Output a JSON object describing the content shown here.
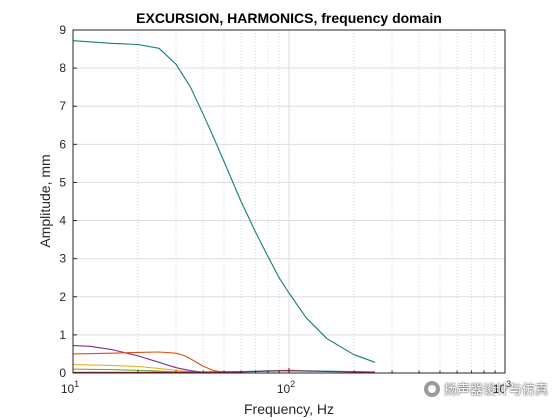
{
  "chart_data": {
    "type": "line",
    "title": "EXCURSION, HARMONICS, frequency domain",
    "xlabel": "Frequency, Hz",
    "ylabel": "Amplitude, mm",
    "xscale": "log",
    "xlim": [
      10,
      1000
    ],
    "ylim": [
      0,
      9
    ],
    "xticks": [
      10,
      100,
      1000
    ],
    "xtick_labels": [
      {
        "base": "10",
        "exp": "1"
      },
      {
        "base": "10",
        "exp": "2"
      },
      {
        "base": "10",
        "exp": "3"
      }
    ],
    "yticks": [
      0,
      1,
      2,
      3,
      4,
      5,
      6,
      7,
      8,
      9
    ],
    "ytick_labels": [
      "0",
      "1",
      "2",
      "3",
      "4",
      "5",
      "6",
      "7",
      "8",
      "9"
    ],
    "grid": true,
    "legend": "none",
    "series": [
      {
        "color": "#1a7a7a",
        "x": [
          10,
          15,
          20,
          25,
          30,
          35,
          40,
          45,
          50,
          55,
          60,
          70,
          80,
          90,
          100,
          120,
          150,
          200,
          250
        ],
        "y": [
          8.72,
          8.65,
          8.62,
          8.52,
          8.1,
          7.5,
          6.8,
          6.15,
          5.55,
          5.0,
          4.5,
          3.7,
          3.05,
          2.5,
          2.1,
          1.45,
          0.9,
          0.48,
          0.28
        ]
      },
      {
        "color": "#7e2f8e",
        "x": [
          10,
          12,
          15,
          20,
          25,
          30,
          35,
          40,
          45,
          50
        ],
        "y": [
          0.72,
          0.7,
          0.62,
          0.45,
          0.28,
          0.14,
          0.06,
          0.02,
          0.01,
          0.0
        ]
      },
      {
        "color": "#d95319",
        "x": [
          10,
          15,
          20,
          25,
          30,
          33,
          36,
          40,
          45,
          50,
          55
        ],
        "y": [
          0.5,
          0.52,
          0.54,
          0.55,
          0.52,
          0.45,
          0.33,
          0.18,
          0.06,
          0.02,
          0.0
        ]
      },
      {
        "color": "#edb120",
        "x": [
          10,
          15,
          20,
          25,
          30,
          35,
          40
        ],
        "y": [
          0.22,
          0.2,
          0.17,
          0.12,
          0.07,
          0.03,
          0.01
        ]
      },
      {
        "color": "#77ac30",
        "x": [
          10,
          15,
          20,
          25,
          30,
          35
        ],
        "y": [
          0.1,
          0.09,
          0.07,
          0.05,
          0.03,
          0.01
        ]
      },
      {
        "color": "#4dbeee",
        "x": [
          10,
          20,
          40,
          60,
          80,
          100,
          150,
          200,
          250
        ],
        "y": [
          0.02,
          0.02,
          0.03,
          0.04,
          0.06,
          0.07,
          0.05,
          0.04,
          0.03
        ]
      },
      {
        "color": "#a2142f",
        "x": [
          10,
          20,
          40,
          60,
          80,
          100,
          150,
          200,
          250
        ],
        "y": [
          0.01,
          0.01,
          0.02,
          0.03,
          0.05,
          0.06,
          0.04,
          0.03,
          0.02
        ]
      }
    ]
  },
  "watermark": {
    "text": "扬声器设计与仿真",
    "icon": "wechat-icon"
  }
}
